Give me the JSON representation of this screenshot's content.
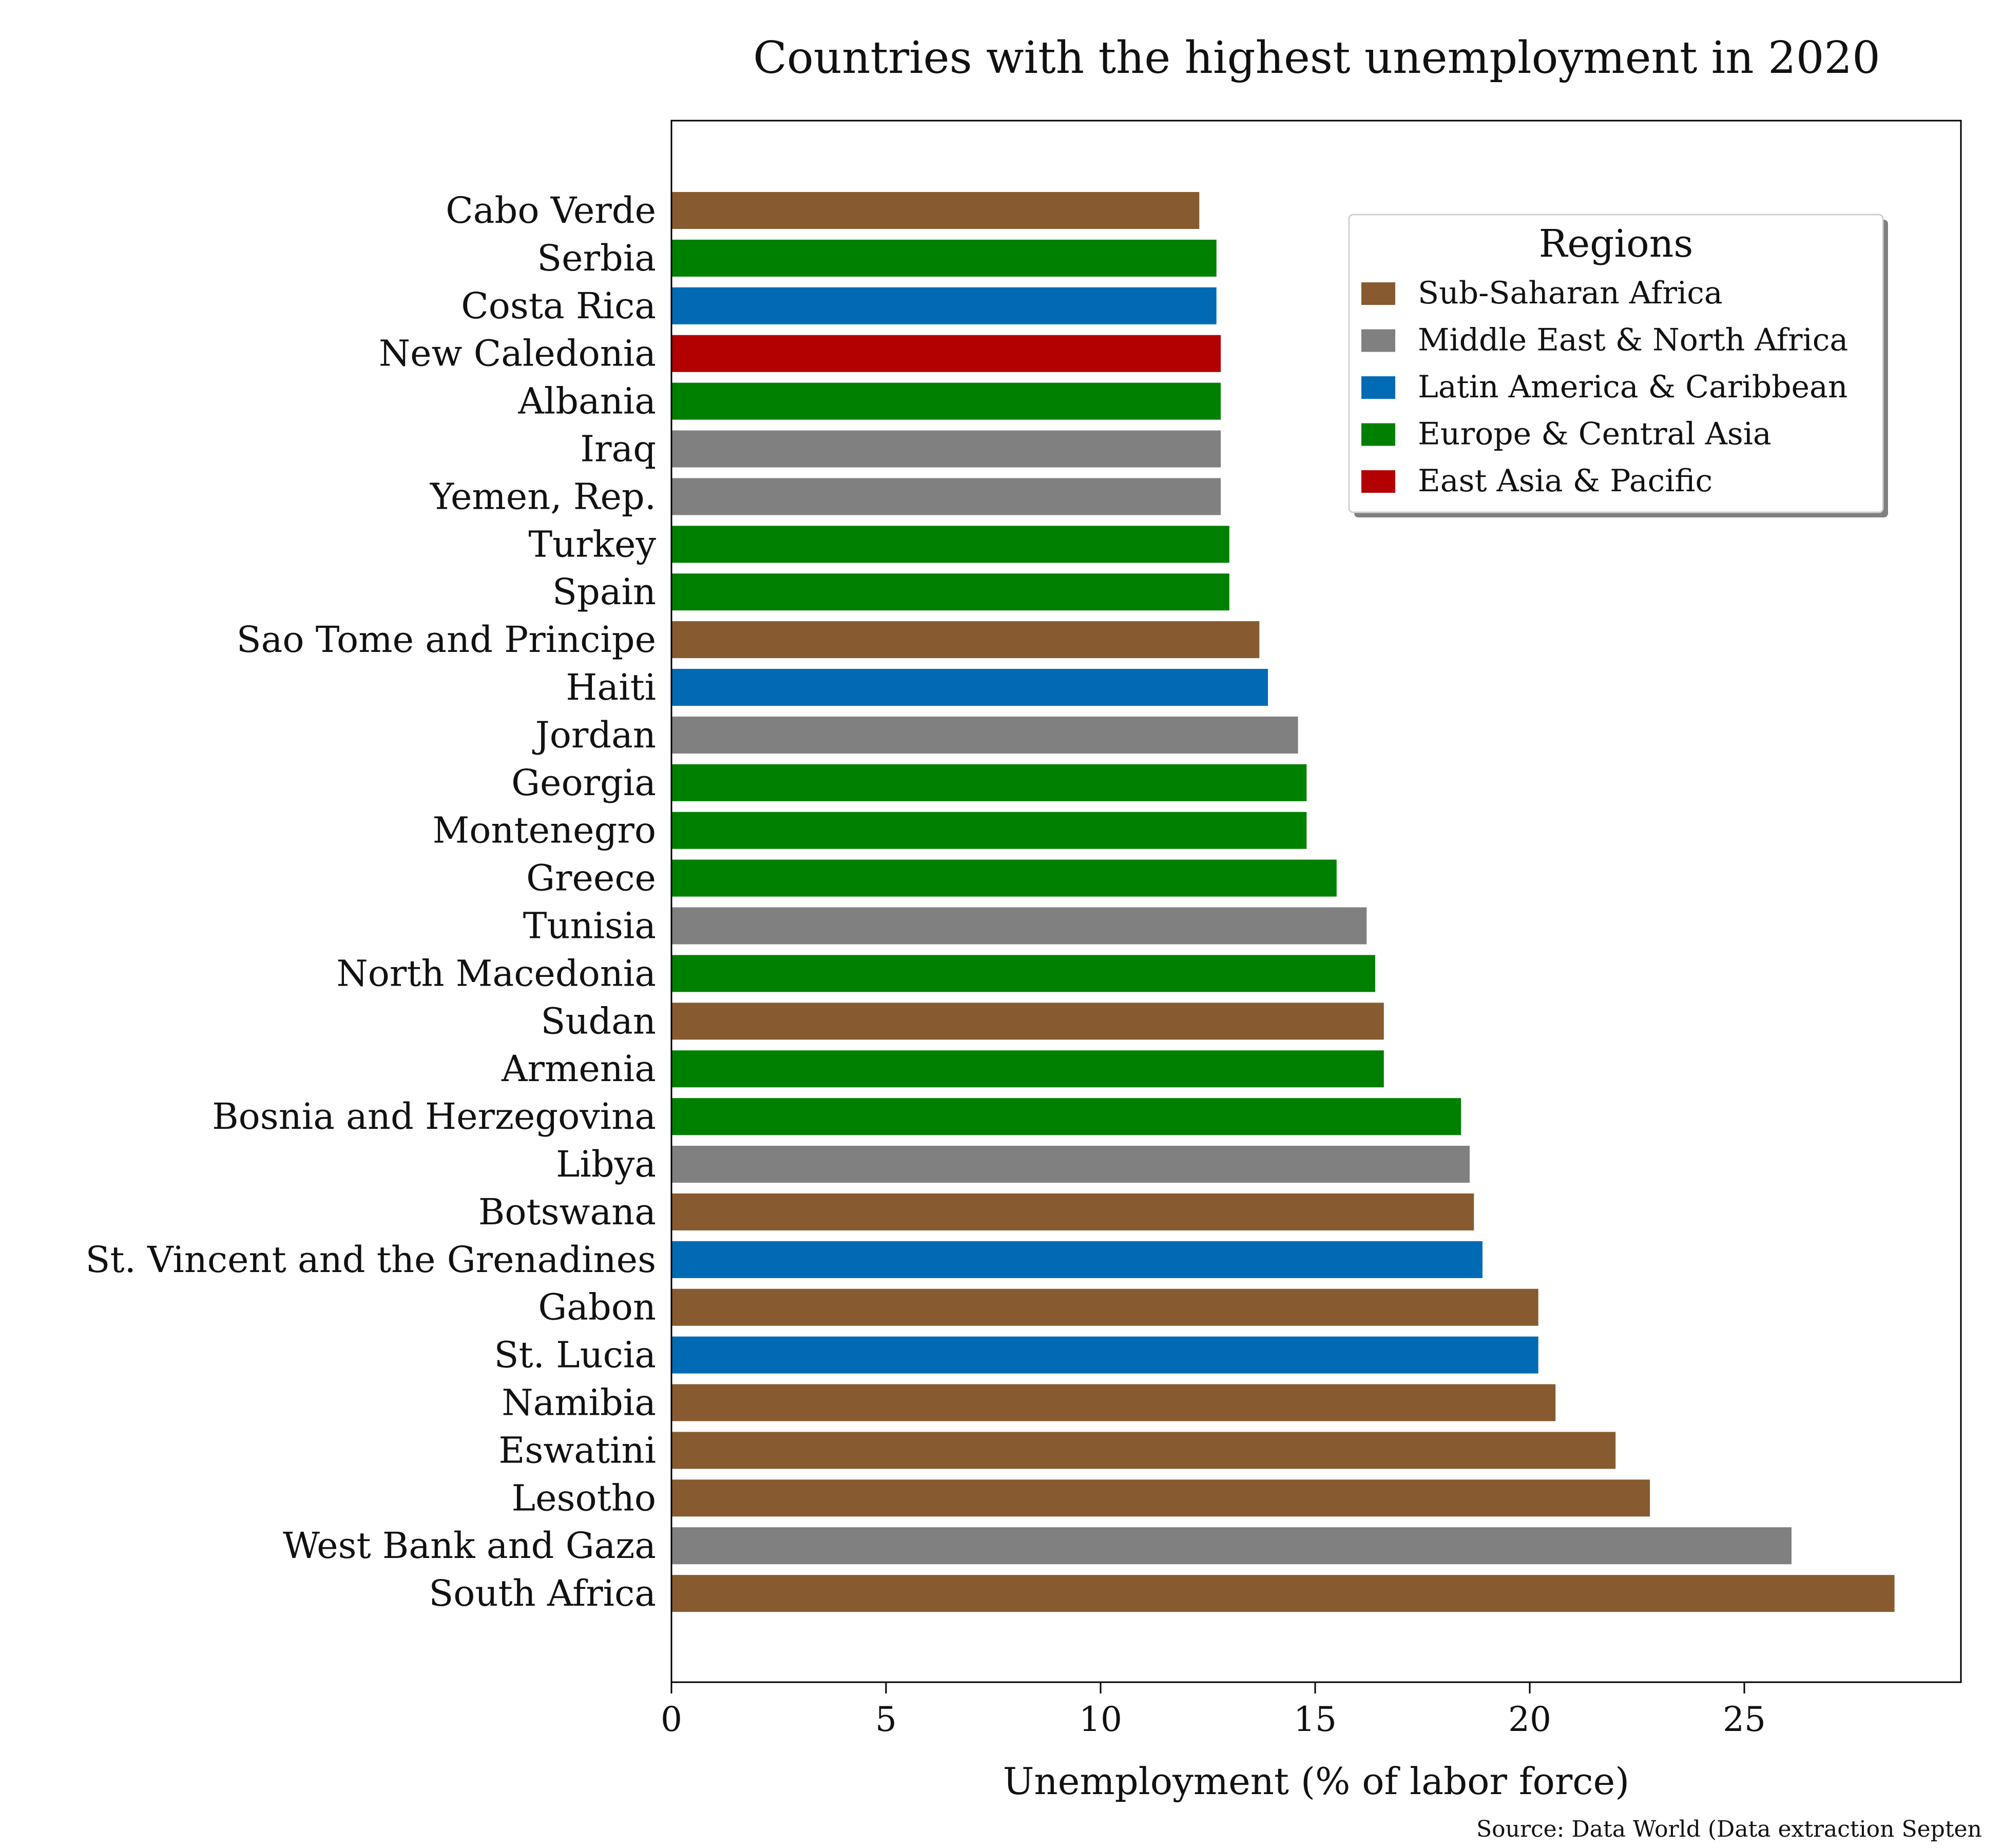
{
  "chart_data": {
    "type": "bar",
    "orientation": "horizontal",
    "title": "Countries with the highest unemployment in 2020",
    "xlabel": "Unemployment (% of labor force)",
    "ylabel": "",
    "xlim": [
      0,
      30
    ],
    "xticks": [
      "0",
      "5",
      "10",
      "15",
      "20",
      "25"
    ],
    "grid": false,
    "legend": {
      "title": "Regions",
      "placement": "top-right",
      "entries": [
        {
          "name": "Sub-Saharan Africa",
          "color": "#875b2f"
        },
        {
          "name": "Middle East & North Africa",
          "color": "#808080"
        },
        {
          "name": "Latin America & Caribbean",
          "color": "#006bb4"
        },
        {
          "name": "Europe & Central Asia",
          "color": "#008000"
        },
        {
          "name": "East Asia & Pacific",
          "color": "#b30000"
        }
      ]
    },
    "bars": [
      {
        "country": "Cabo Verde",
        "value": 12.3,
        "region": "Sub-Saharan Africa"
      },
      {
        "country": "Serbia",
        "value": 12.7,
        "region": "Europe & Central Asia"
      },
      {
        "country": "Costa Rica",
        "value": 12.7,
        "region": "Latin America & Caribbean"
      },
      {
        "country": "New Caledonia",
        "value": 12.8,
        "region": "East Asia & Pacific"
      },
      {
        "country": "Albania",
        "value": 12.8,
        "region": "Europe & Central Asia"
      },
      {
        "country": "Iraq",
        "value": 12.8,
        "region": "Middle East & North Africa"
      },
      {
        "country": "Yemen, Rep.",
        "value": 12.8,
        "region": "Middle East & North Africa"
      },
      {
        "country": "Turkey",
        "value": 13.0,
        "region": "Europe & Central Asia"
      },
      {
        "country": "Spain",
        "value": 13.0,
        "region": "Europe & Central Asia"
      },
      {
        "country": "Sao Tome and Principe",
        "value": 13.7,
        "region": "Sub-Saharan Africa"
      },
      {
        "country": "Haiti",
        "value": 13.9,
        "region": "Latin America & Caribbean"
      },
      {
        "country": "Jordan",
        "value": 14.6,
        "region": "Middle East & North Africa"
      },
      {
        "country": "Georgia",
        "value": 14.8,
        "region": "Europe & Central Asia"
      },
      {
        "country": "Montenegro",
        "value": 14.8,
        "region": "Europe & Central Asia"
      },
      {
        "country": "Greece",
        "value": 15.5,
        "region": "Europe & Central Asia"
      },
      {
        "country": "Tunisia",
        "value": 16.2,
        "region": "Middle East & North Africa"
      },
      {
        "country": "North Macedonia",
        "value": 16.4,
        "region": "Europe & Central Asia"
      },
      {
        "country": "Sudan",
        "value": 16.6,
        "region": "Sub-Saharan Africa"
      },
      {
        "country": "Armenia",
        "value": 16.6,
        "region": "Europe & Central Asia"
      },
      {
        "country": "Bosnia and Herzegovina",
        "value": 18.4,
        "region": "Europe & Central Asia"
      },
      {
        "country": "Libya",
        "value": 18.6,
        "region": "Middle East & North Africa"
      },
      {
        "country": "Botswana",
        "value": 18.7,
        "region": "Sub-Saharan Africa"
      },
      {
        "country": "St. Vincent and the Grenadines",
        "value": 18.9,
        "region": "Latin America & Caribbean"
      },
      {
        "country": "Gabon",
        "value": 20.2,
        "region": "Sub-Saharan Africa"
      },
      {
        "country": "St. Lucia",
        "value": 20.2,
        "region": "Latin America & Caribbean"
      },
      {
        "country": "Namibia",
        "value": 20.6,
        "region": "Sub-Saharan Africa"
      },
      {
        "country": "Eswatini",
        "value": 22.0,
        "region": "Sub-Saharan Africa"
      },
      {
        "country": "Lesotho",
        "value": 22.8,
        "region": "Sub-Saharan Africa"
      },
      {
        "country": "West Bank and Gaza",
        "value": 26.1,
        "region": "Middle East & North Africa"
      },
      {
        "country": "South Africa",
        "value": 28.5,
        "region": "Sub-Saharan Africa"
      }
    ],
    "source": "Source: Data World (Data extraction Septen"
  }
}
